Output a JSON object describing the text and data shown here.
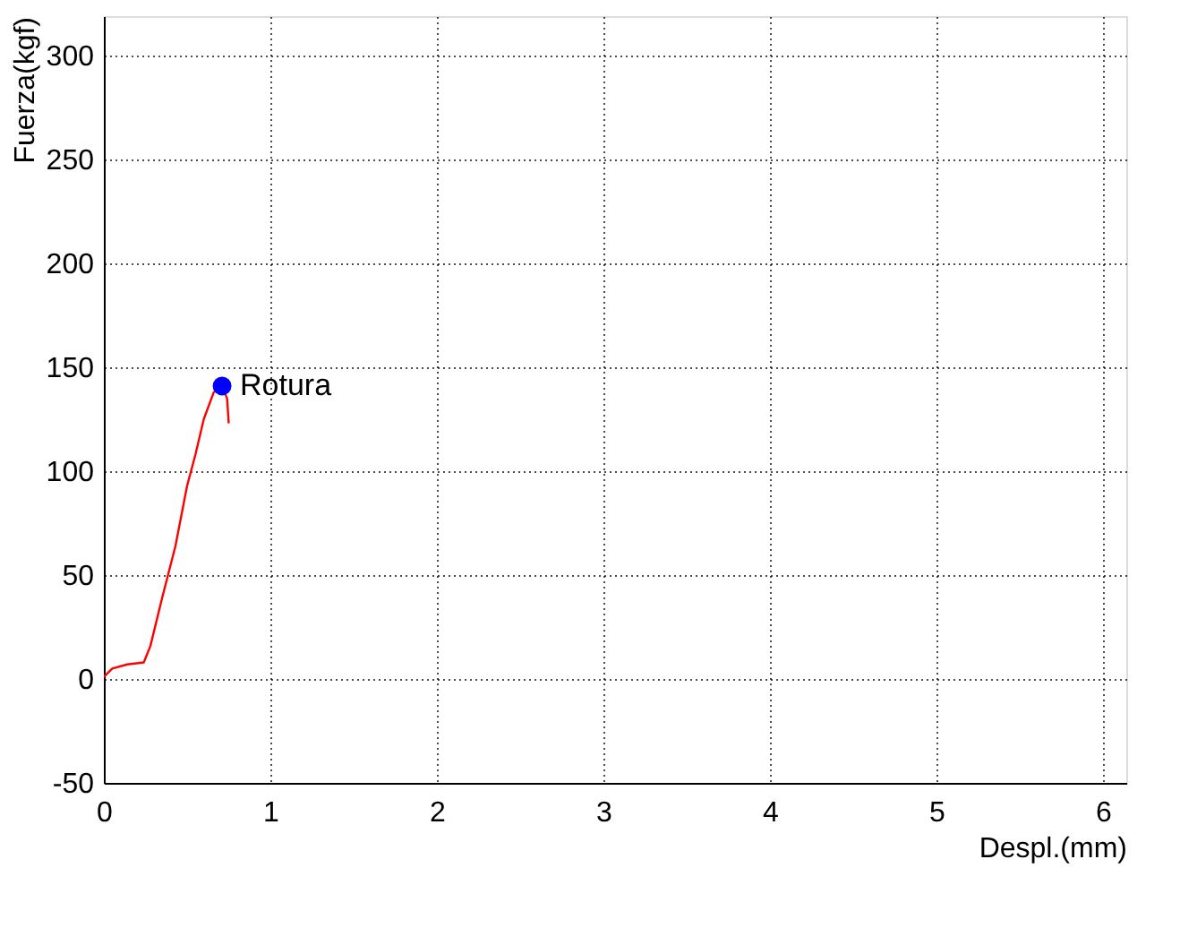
{
  "chart_data": {
    "type": "line",
    "xlabel": "Despl.(mm)",
    "ylabel": "Fuerza(kgf)",
    "xlim": [
      0,
      6.14
    ],
    "xticks": [
      0,
      1,
      2,
      3,
      4,
      5,
      6
    ],
    "ylim": [
      -50,
      319
    ],
    "yticks": [
      -50,
      0,
      50,
      100,
      150,
      200,
      250,
      300
    ],
    "grid": true,
    "series": [
      {
        "color": "#ff0000",
        "x": [
          0,
          0.05,
          0.14,
          0.24,
          0.28,
          0.35,
          0.43,
          0.5,
          0.55,
          0.6,
          0.66,
          0.71,
          0.74,
          0.75
        ],
        "values": [
          1,
          5,
          7,
          8,
          16,
          39,
          64,
          93,
          108,
          125,
          138,
          141,
          135,
          123
        ]
      },
      {
        "type": "scatter",
        "color": "#0000ff",
        "marker": "circle",
        "x": [
          0.71
        ],
        "values": [
          141
        ]
      }
    ],
    "annotations": [
      {
        "text": "Rotura",
        "x": 0.71,
        "y": 141
      }
    ]
  }
}
